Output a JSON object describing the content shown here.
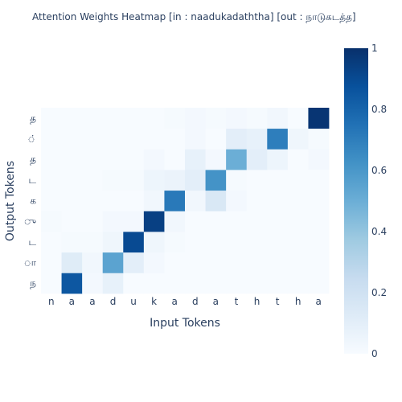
{
  "chart_data": {
    "type": "heatmap",
    "title": "Attention Weights Heatmap [in : naadukadaththa] [out : நாடுகடத்த]",
    "xlabel": "Input Tokens",
    "ylabel": "Output Tokens",
    "x": [
      "n",
      "a",
      "a",
      "d",
      "u",
      "k",
      "a",
      "d",
      "a",
      "t",
      "h",
      "t",
      "h",
      "a"
    ],
    "y": [
      "ந",
      "ா",
      "ட",
      "ு",
      "க",
      "ட",
      "த",
      "்",
      "த"
    ],
    "z": [
      [
        0.0,
        0.85,
        0.02,
        0.08,
        0.0,
        0.0,
        0.0,
        0.0,
        0.0,
        0.0,
        0.0,
        0.0,
        0.0,
        0.0
      ],
      [
        0.0,
        0.12,
        0.03,
        0.55,
        0.1,
        0.02,
        0.0,
        0.0,
        0.0,
        0.0,
        0.0,
        0.0,
        0.0,
        0.0
      ],
      [
        0.0,
        0.01,
        0.01,
        0.04,
        0.9,
        0.04,
        0.01,
        0.0,
        0.0,
        0.0,
        0.0,
        0.0,
        0.0,
        0.0
      ],
      [
        0.01,
        0.0,
        0.0,
        0.02,
        0.02,
        0.94,
        0.03,
        0.0,
        0.0,
        0.0,
        0.0,
        0.0,
        0.0,
        0.0
      ],
      [
        0.0,
        0.0,
        0.0,
        0.0,
        0.0,
        0.03,
        0.72,
        0.03,
        0.15,
        0.02,
        0.0,
        0.0,
        0.0,
        0.0
      ],
      [
        0.0,
        0.0,
        0.0,
        0.01,
        0.01,
        0.05,
        0.06,
        0.1,
        0.62,
        0.01,
        0.0,
        0.0,
        0.0,
        0.0
      ],
      [
        0.0,
        0.0,
        0.0,
        0.0,
        0.0,
        0.02,
        0.0,
        0.08,
        0.02,
        0.5,
        0.1,
        0.05,
        0.0,
        0.02
      ],
      [
        0.0,
        0.0,
        0.0,
        0.0,
        0.0,
        0.0,
        0.0,
        0.02,
        0.0,
        0.1,
        0.08,
        0.7,
        0.04,
        0.01
      ],
      [
        0.0,
        0.0,
        0.0,
        0.0,
        0.0,
        0.0,
        0.01,
        0.02,
        0.01,
        0.02,
        0.01,
        0.03,
        0.0,
        0.98
      ]
    ],
    "zrange": [
      0,
      1
    ],
    "colorbar_ticks": [
      0,
      0.2,
      0.4,
      0.6,
      0.8,
      1
    ],
    "colorbar_tick_labels": [
      "0",
      "0.2",
      "0.4",
      "0.6",
      "0.8",
      "1"
    ],
    "colorscale": [
      "#f7fbff",
      "#deebf7",
      "#c6dbef",
      "#9ecae1",
      "#6baed6",
      "#4292c6",
      "#2171b5",
      "#08519c",
      "#08306b"
    ],
    "legend": "colorbar-right"
  }
}
